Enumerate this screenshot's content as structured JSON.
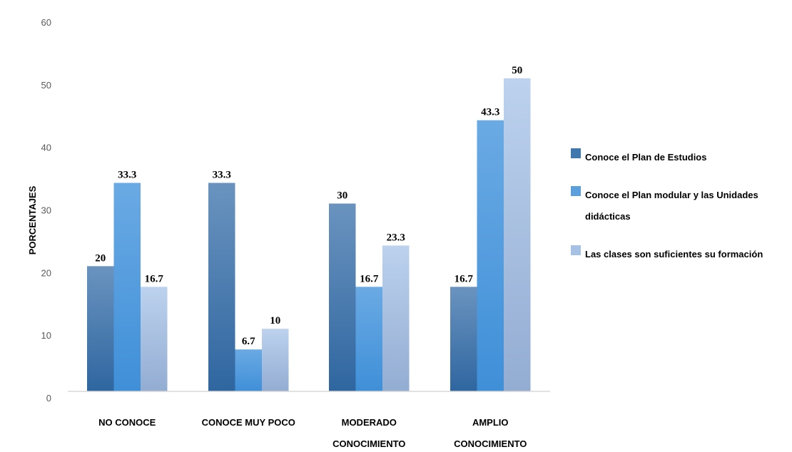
{
  "chart_data": {
    "type": "bar",
    "title": "",
    "xlabel": "",
    "ylabel": "PORCENTAJES",
    "ylim": [
      0,
      60
    ],
    "yticks": [
      0,
      10,
      20,
      30,
      40,
      50,
      60
    ],
    "grid": false,
    "legend_position": "right",
    "categories": [
      [
        "NO CONOCE"
      ],
      [
        "CONOCE MUY POCO"
      ],
      [
        "MODERADO",
        "CONOCIMIENTO"
      ],
      [
        "AMPLIO",
        "CONOCIMIENTO"
      ]
    ],
    "series": [
      {
        "name": "Conoce el Plan de Estudios",
        "values": [
          20,
          33.3,
          30,
          16.7
        ],
        "labels": [
          "20",
          "33.3",
          "30",
          "16.7"
        ],
        "color": "#3f78ad"
      },
      {
        "name": "Conoce el Plan modular y las Unidades didácticas",
        "values": [
          33.3,
          6.7,
          16.7,
          43.3
        ],
        "labels": [
          "33.3",
          "6.7",
          "16.7",
          "43.3"
        ],
        "color": "#5b9fdd"
      },
      {
        "name": "Las clases son suficientes su formación",
        "values": [
          16.7,
          10,
          23.3,
          50
        ],
        "labels": [
          "16.7",
          "10",
          "23.3",
          "50"
        ],
        "color": "#a6c1e4"
      }
    ]
  }
}
